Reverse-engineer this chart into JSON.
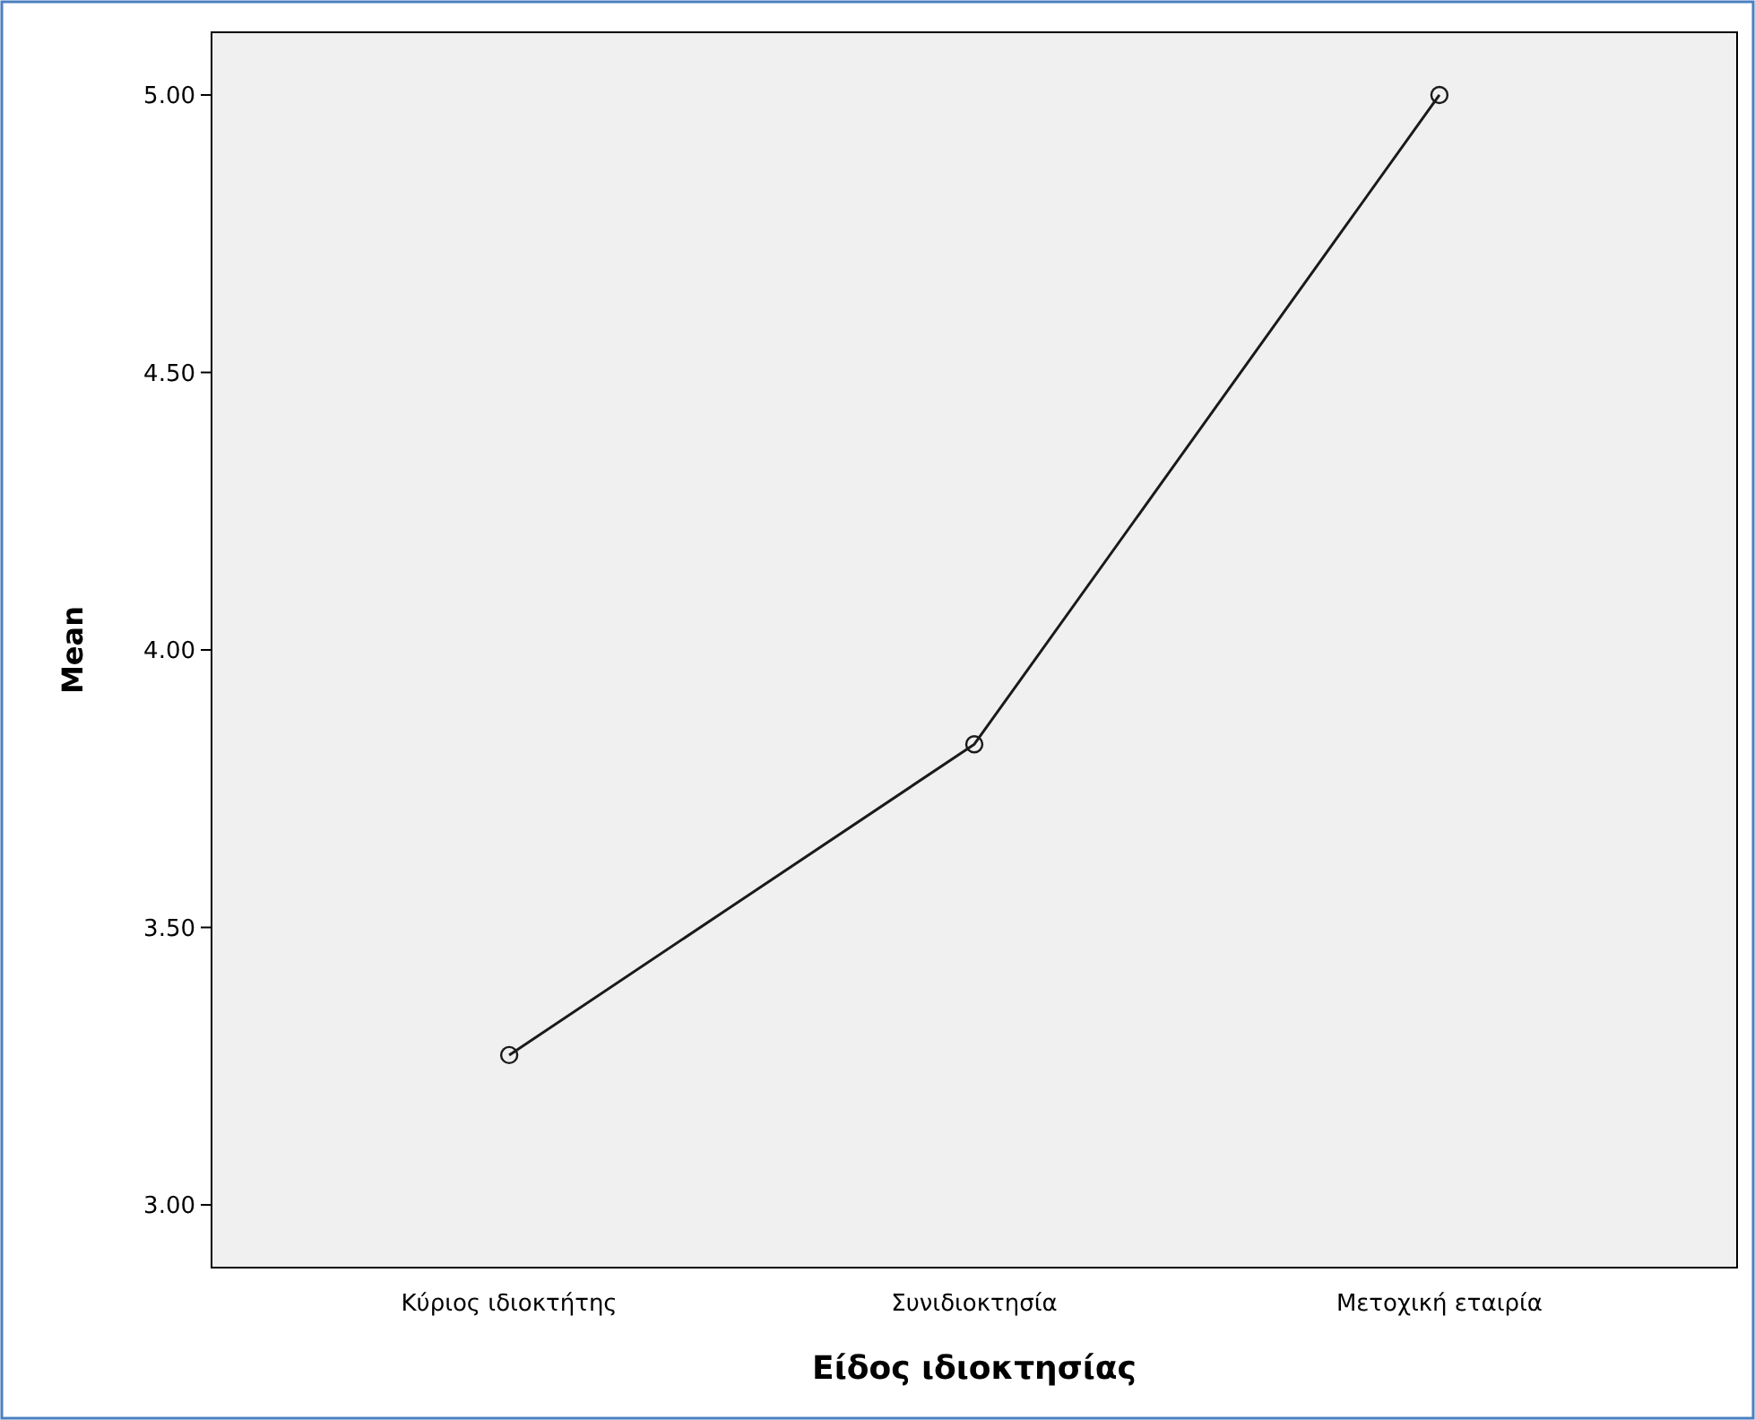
{
  "chart_data": {
    "type": "line",
    "xlabel": "Είδος ιδιοκτησίας",
    "ylabel": "Mean",
    "categories": [
      "Κύριος ιδιοκτήτης",
      "Συνιδιοκτησία",
      "Μετοχική εταιρία"
    ],
    "series": [
      {
        "color": "#1a1a1a",
        "values": [
          3.27,
          3.83,
          5.0
        ]
      }
    ],
    "ylim": [
      2.887,
      5.113
    ],
    "yticks": [
      {
        "value": 3,
        "label": "3.00"
      },
      {
        "value": 3.5,
        "label": "3.50"
      },
      {
        "value": 4,
        "label": "4.00"
      },
      {
        "value": 4.5,
        "label": "4.50"
      },
      {
        "value": 5,
        "label": "5.00"
      }
    ],
    "grid": false,
    "marker": "circle",
    "line_style": "solid"
  }
}
